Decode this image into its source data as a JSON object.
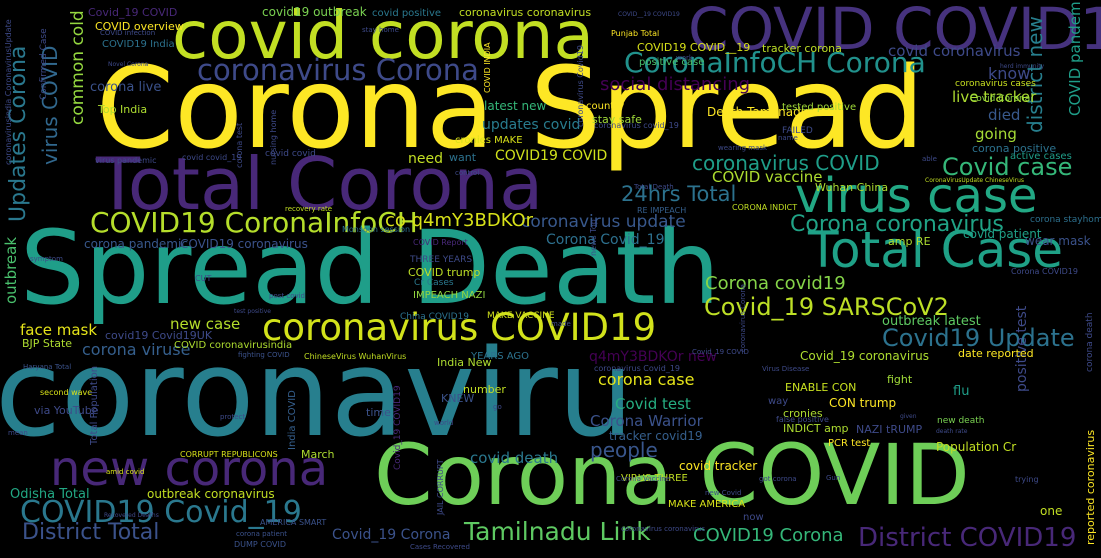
{
  "colors": {
    "background": "#000000",
    "palette": [
      "#440154",
      "#46327e",
      "#365c8d",
      "#277f8e",
      "#1fa187",
      "#4ac16d",
      "#a0da39",
      "#fde725"
    ]
  },
  "words": [
    {
      "text": "coronaviru",
      "color": "#277f8e",
      "rotated": false
    },
    {
      "text": "Corona Spread",
      "color": "#fde725",
      "rotated": false
    },
    {
      "text": "Spread Death",
      "color": "#1f9e89",
      "rotated": false
    },
    {
      "text": "Total Corona",
      "color": "#482878",
      "rotated": false
    },
    {
      "text": "covid corona",
      "color": "#c2df23",
      "rotated": false
    },
    {
      "text": "COVID COVID19",
      "color": "#46327e",
      "rotated": false
    },
    {
      "text": "Corona COVID",
      "color": "#6ece58",
      "rotated": false
    },
    {
      "text": "new corona",
      "color": "#482878",
      "rotated": false
    },
    {
      "text": "virus case",
      "color": "#22a884",
      "rotated": false
    },
    {
      "text": "Total Case",
      "color": "#1fa187",
      "rotated": false
    },
    {
      "text": "coronavirus COVID19",
      "color": "#d2e21b",
      "rotated": false
    },
    {
      "text": "coronavirus Corona",
      "color": "#3e4a89",
      "rotated": false
    },
    {
      "text": "CoronaInfoCH Corona",
      "color": "#21918c",
      "rotated": false
    },
    {
      "text": "COVID19 CoronaInfoCH",
      "color": "#b5de2b",
      "rotated": false
    },
    {
      "text": "COVID19 Covid_19",
      "color": "#2a788e",
      "rotated": false
    },
    {
      "text": "District Total",
      "color": "#3b528b",
      "rotated": false
    },
    {
      "text": "Tamilnadu Link",
      "color": "#5ec962",
      "rotated": false
    },
    {
      "text": "District COVID19",
      "color": "#482878",
      "rotated": false
    },
    {
      "text": "COVID19 Corona",
      "color": "#35b779",
      "rotated": false
    },
    {
      "text": "Corona coronavirus",
      "color": "#20a386",
      "rotated": false
    },
    {
      "text": "Covid_19 SARSCoV2",
      "color": "#bddf26",
      "rotated": false
    },
    {
      "text": "Covid19 Update",
      "color": "#2c728e",
      "rotated": false
    },
    {
      "text": "Covid case",
      "color": "#35b779",
      "rotated": false
    },
    {
      "text": "coronavirus COVID",
      "color": "#1f9e89",
      "rotated": false
    },
    {
      "text": "Corona covid19",
      "color": "#86d549",
      "rotated": false
    },
    {
      "text": "virus COVID",
      "color": "#31688e",
      "rotated": true
    },
    {
      "text": "Updates Corona",
      "color": "#2a788e",
      "rotated": true
    },
    {
      "text": "24hrs Total",
      "color": "#2c728e",
      "rotated": false
    },
    {
      "text": "coronavirus update",
      "color": "#38588c",
      "rotated": false
    },
    {
      "text": "co q4mY3BDKOr",
      "color": "#d8e219",
      "rotated": false
    },
    {
      "text": "corona case",
      "color": "#e5e419",
      "rotated": false
    },
    {
      "text": "Covid test",
      "color": "#26ad81",
      "rotated": false
    },
    {
      "text": "corona viruse",
      "color": "#355f8d",
      "rotated": false
    },
    {
      "text": "people",
      "color": "#39568c",
      "rotated": false
    },
    {
      "text": "covid death",
      "color": "#2a788e",
      "rotated": false
    },
    {
      "text": "Corona Warrior",
      "color": "#3b528b",
      "rotated": false
    },
    {
      "text": "COVID vaccine",
      "color": "#addc30",
      "rotated": false
    },
    {
      "text": "updates covid",
      "color": "#287c8e",
      "rotated": false
    },
    {
      "text": "COVID19 COVID",
      "color": "#d0e11c",
      "rotated": false
    },
    {
      "text": "Corona Covid_19",
      "color": "#2d708e",
      "rotated": false
    },
    {
      "text": "Covid_19 Corona",
      "color": "#3b528b",
      "rotated": false
    },
    {
      "text": "new case",
      "color": "#b5de2b",
      "rotated": false
    },
    {
      "text": "face mask",
      "color": "#e5e419",
      "rotated": false
    },
    {
      "text": "common cold",
      "color": "#95d840",
      "rotated": true
    },
    {
      "text": "district new",
      "color": "#277f8e",
      "rotated": true
    },
    {
      "text": "COVID pandemic",
      "color": "#1f9e89",
      "rotated": true
    },
    {
      "text": "outbreak",
      "color": "#4ac16d",
      "rotated": true
    },
    {
      "text": "q4mY3BDKOr new",
      "color": "#440154",
      "rotated": false
    },
    {
      "text": "positive test",
      "color": "#3e4a89",
      "rotated": true
    },
    {
      "text": "Corona outbreak",
      "color": "#d2e21b",
      "rotated": false
    },
    {
      "text": "Tamilnadu Link",
      "color": "#5ec962",
      "rotated": false
    },
    {
      "text": "live tracker",
      "color": "#addc30",
      "rotated": false
    },
    {
      "text": "know",
      "color": "#3e4a89",
      "rotated": false
    },
    {
      "text": "going",
      "color": "#a5db36",
      "rotated": false
    },
    {
      "text": "died",
      "color": "#38598c",
      "rotated": false
    },
    {
      "text": "need",
      "color": "#c2df23",
      "rotated": false
    },
    {
      "text": "covid patient",
      "color": "#1fa187",
      "rotated": false
    },
    {
      "text": "Death Tamilnadu",
      "color": "#fde725",
      "rotated": false
    },
    {
      "text": "social distancing",
      "color": "#440154",
      "rotated": false
    },
    {
      "text": "latest new",
      "color": "#35b779",
      "rotated": false
    },
    {
      "text": "Top India",
      "color": "#addc30",
      "rotated": false
    },
    {
      "text": "corona live",
      "color": "#3b528b",
      "rotated": false
    },
    {
      "text": "COVID19 India",
      "color": "#2c728e",
      "rotated": false
    },
    {
      "text": "COVID overview",
      "color": "#fde725",
      "rotated": false
    },
    {
      "text": "Covid_19 COVID",
      "color": "#482878",
      "rotated": false
    },
    {
      "text": "covid19 outbreak",
      "color": "#7ad151",
      "rotated": false
    },
    {
      "text": "covid positive",
      "color": "#2a788e",
      "rotated": false
    },
    {
      "text": "coronavirus coronavirus",
      "color": "#c2df23",
      "rotated": false
    },
    {
      "text": "COVID19 COVID__19",
      "color": "#d8e219",
      "rotated": false
    },
    {
      "text": "tracker corona",
      "color": "#bddf26",
      "rotated": false
    },
    {
      "text": "covid coronavirus",
      "color": "#3e4a89",
      "rotated": false
    },
    {
      "text": "positive case",
      "color": "#4ac16d",
      "rotated": false
    },
    {
      "text": "tested positive",
      "color": "#a0da39",
      "rotated": false
    },
    {
      "text": "coronavirus cases",
      "color": "#c8e020",
      "rotated": false
    },
    {
      "text": "Covid Corona",
      "color": "#90d743",
      "rotated": false
    },
    {
      "text": "corona positive",
      "color": "#2c728e",
      "rotated": false
    },
    {
      "text": "active cases",
      "color": "#1f9e89",
      "rotated": false
    },
    {
      "text": "wear mask",
      "color": "#3b528b",
      "rotated": false
    },
    {
      "text": "corona stayhome",
      "color": "#2d708e",
      "rotated": false
    },
    {
      "text": "amp RE",
      "color": "#addc30",
      "rotated": false
    },
    {
      "text": "date reported",
      "color": "#fde725",
      "rotated": false
    },
    {
      "text": "outbreak latest",
      "color": "#5ec962",
      "rotated": false
    },
    {
      "text": "Covid_19 coronavirus",
      "color": "#addc30",
      "rotated": false
    },
    {
      "text": "ENABLE CON",
      "color": "#c8e020",
      "rotated": false
    },
    {
      "text": "fight",
      "color": "#a0da39",
      "rotated": false
    },
    {
      "text": "flu",
      "color": "#1f9e89",
      "rotated": false
    },
    {
      "text": "CON trump",
      "color": "#fde725",
      "rotated": false
    },
    {
      "text": "NAZI tRUMP",
      "color": "#3e4a89",
      "rotated": false
    },
    {
      "text": "INDICT amp",
      "color": "#addc30",
      "rotated": false
    },
    {
      "text": "cronies",
      "color": "#addc30",
      "rotated": false
    },
    {
      "text": "Population Cr",
      "color": "#c2df23",
      "rotated": false
    },
    {
      "text": "new death",
      "color": "#7ad151",
      "rotated": false
    },
    {
      "text": "COVID19 coronavirus",
      "color": "#3b528b",
      "rotated": false
    },
    {
      "text": "corona pandemic",
      "color": "#38588c",
      "rotated": false
    },
    {
      "text": "COVID trump",
      "color": "#bddf26",
      "rotated": false
    },
    {
      "text": "THREE YEARS",
      "color": "#3e4a89",
      "rotated": false
    },
    {
      "text": "Cr Cases",
      "color": "#2a788e",
      "rotated": false
    },
    {
      "text": "IMPEACH NAZI",
      "color": "#95d840",
      "rotated": false
    },
    {
      "text": "China COVID19",
      "color": "#2c728e",
      "rotated": false
    },
    {
      "text": "MAKE VACCINE",
      "color": "#d0e11c",
      "rotated": false
    },
    {
      "text": "COVID coronavirusindia",
      "color": "#addc30",
      "rotated": false
    },
    {
      "text": "covid19 Covid19UK",
      "color": "#3e4a89",
      "rotated": false
    },
    {
      "text": "BJP State",
      "color": "#addc30",
      "rotated": false
    },
    {
      "text": "YEARS AGO",
      "color": "#2c728e",
      "rotated": false
    },
    {
      "text": "KNEW",
      "color": "#3b528b",
      "rotated": false
    },
    {
      "text": "number",
      "color": "#c2df23",
      "rotated": false
    },
    {
      "text": "India New",
      "color": "#addc30",
      "rotated": false
    },
    {
      "text": "covid tracker",
      "color": "#fde725",
      "rotated": false
    },
    {
      "text": "PCR test",
      "color": "#fde725",
      "rotated": false
    },
    {
      "text": "tracker covid19",
      "color": "#355f8d",
      "rotated": false
    },
    {
      "text": "CORRUPT REPUBLICONS",
      "color": "#d8e219",
      "rotated": false
    },
    {
      "text": "March",
      "color": "#addc30",
      "rotated": false
    },
    {
      "text": "Odisha Total",
      "color": "#22a884",
      "rotated": false
    },
    {
      "text": "outbreak coronavirus",
      "color": "#c2df23",
      "rotated": false
    },
    {
      "text": "via YouTube",
      "color": "#3e4a89",
      "rotated": false
    },
    {
      "text": "VIRUS THREE",
      "color": "#c2df23",
      "rotated": false
    },
    {
      "text": "MAKE AMERICA",
      "color": "#d8e219",
      "rotated": false
    },
    {
      "text": "one",
      "color": "#c2df23",
      "rotated": false
    },
    {
      "text": "time",
      "color": "#3b528b",
      "rotated": false
    },
    {
      "text": "stay safe",
      "color": "#a0da39",
      "rotated": false
    },
    {
      "text": "country",
      "color": "#fde725",
      "rotated": false
    },
    {
      "text": "want",
      "color": "#2c728e",
      "rotated": false
    },
    {
      "text": "cronies MAKE",
      "color": "#d8e219",
      "rotated": false
    },
    {
      "text": "Wuhan China",
      "color": "#addc30",
      "rotated": false
    },
    {
      "text": "Monsoon session",
      "color": "#2c728e",
      "rotated": false
    },
    {
      "text": "COVID Report",
      "color": "#482878",
      "rotated": false
    },
    {
      "text": "CORONA INDICT",
      "color": "#c2df23",
      "rotated": false
    },
    {
      "text": "RE IMPEACH",
      "color": "#355f8d",
      "rotated": false
    },
    {
      "text": "second wave",
      "color": "#d8e219",
      "rotated": false
    },
    {
      "text": "amid covid",
      "color": "#d8e219",
      "rotated": false
    },
    {
      "text": "Total Population",
      "color": "#3e4a89",
      "rotated": true
    },
    {
      "text": "India COVID",
      "color": "#355f8d",
      "rotated": true
    },
    {
      "text": "Covid_19 COVID19",
      "color": "#482878",
      "rotated": true
    },
    {
      "text": "DUMP COVID",
      "color": "#3b528b",
      "rotated": false
    },
    {
      "text": "AMERICA SMART",
      "color": "#3b528b",
      "rotated": false
    },
    {
      "text": "corona patient",
      "color": "#3b528b",
      "rotated": false
    },
    {
      "text": "Cases Recovered",
      "color": "#3e4a89",
      "rotated": false
    },
    {
      "text": "Recovered Deaths",
      "color": "#3e4a89",
      "rotated": false
    },
    {
      "text": "Haryana Total",
      "color": "#3b528b",
      "rotated": false
    },
    {
      "text": "fighting COVID",
      "color": "#3b528b",
      "rotated": false
    },
    {
      "text": "ChineseVirus WuhanVirus",
      "color": "#c2df23",
      "rotated": false
    },
    {
      "text": "post covid",
      "color": "#3e4a89",
      "rotated": false
    },
    {
      "text": "test positive",
      "color": "#3e4a89",
      "rotated": false
    },
    {
      "text": "recovery rate",
      "color": "#c2df23",
      "rotated": false
    },
    {
      "text": "JAIL CORRUPT",
      "color": "#3e4a89",
      "rotated": true
    },
    {
      "text": "Corona Vaccine",
      "color": "#3e4a89",
      "rotated": false
    },
    {
      "text": "got corona",
      "color": "#3e4a89",
      "rotated": false
    },
    {
      "text": "new Covid",
      "color": "#3e4a89",
      "rotated": false
    },
    {
      "text": "now",
      "color": "#3e4a89",
      "rotated": false
    },
    {
      "text": "way",
      "color": "#3e4a89",
      "rotated": false
    },
    {
      "text": "reported coronavirus",
      "color": "#fde725",
      "rotated": true
    },
    {
      "text": "corona death",
      "color": "#3e4a89",
      "rotated": true
    },
    {
      "text": "trying",
      "color": "#3e4a89",
      "rotated": false
    },
    {
      "text": "given",
      "color": "#3e4a89",
      "rotated": false
    },
    {
      "text": "false positive",
      "color": "#3e4a89",
      "rotated": false
    },
    {
      "text": "death rate",
      "color": "#3e4a89",
      "rotated": false
    },
    {
      "text": "Virus Disease",
      "color": "#3e4a89",
      "rotated": false
    },
    {
      "text": "FAILED",
      "color": "#3e4a89",
      "rotated": false
    },
    {
      "text": "wearing mask",
      "color": "#3e4a89",
      "rotated": false
    },
    {
      "text": "virus pandemic",
      "color": "#3e4a89",
      "rotated": false
    },
    {
      "text": "Novel Corona",
      "color": "#3e4a89",
      "rotated": false
    },
    {
      "text": "COVID infection",
      "color": "#3e4a89",
      "rotated": false
    },
    {
      "text": "Confirmed Case",
      "color": "#3e4a89",
      "rotated": true
    },
    {
      "text": "coronavirusindia CoronavirusUpdate",
      "color": "#3e4a89",
      "rotated": true
    },
    {
      "text": "Punjab Total",
      "color": "#fde725",
      "rotated": false
    },
    {
      "text": "herd immunity",
      "color": "#3e4a89",
      "rotated": false
    },
    {
      "text": "Corona COVID19",
      "color": "#3e4a89",
      "rotated": false
    },
    {
      "text": "CoronaVirusUpdate ChineseVirus",
      "color": "#c2df23",
      "rotated": false
    },
    {
      "text": "Total Death",
      "color": "#3e4a89",
      "rotated": false
    },
    {
      "text": "symptom",
      "color": "#3e4a89",
      "rotated": false
    },
    {
      "text": "CUT",
      "color": "#3e4a89",
      "rotated": false
    },
    {
      "text": "protect",
      "color": "#3e4a89",
      "rotated": false
    },
    {
      "text": "world",
      "color": "#3e4a89",
      "rotated": false
    },
    {
      "text": "go",
      "color": "#3e4a89",
      "rotated": false
    },
    {
      "text": "made",
      "color": "#3e4a89",
      "rotated": false
    },
    {
      "text": "Covid_19 COVID",
      "color": "#3e4a89",
      "rotated": false
    },
    {
      "text": "covid covid_19",
      "color": "#3e4a89",
      "rotated": false
    },
    {
      "text": "corona test",
      "color": "#3e4a89",
      "rotated": true
    },
    {
      "text": "covid covid",
      "color": "#3e4a89",
      "rotated": false
    },
    {
      "text": "nursing home",
      "color": "#3e4a89",
      "rotated": true
    },
    {
      "text": "coronavirus covid_19",
      "color": "#3e4a89",
      "rotated": false
    },
    {
      "text": "COVID__19 COVID19",
      "color": "#3e4a89",
      "rotated": false
    },
    {
      "text": "coronavirus coronavirus",
      "color": "#3e4a89",
      "rotated": false
    },
    {
      "text": "news Top",
      "color": "#3e4a89",
      "rotated": true
    },
    {
      "text": "COVID INDIA",
      "color": "#fde725",
      "rotated": true
    },
    {
      "text": "work",
      "color": "#3e4a89",
      "rotated": false
    },
    {
      "text": "stay home",
      "color": "#3e4a89",
      "rotated": false
    },
    {
      "text": "control",
      "color": "#3e4a89",
      "rotated": false
    },
    {
      "text": "able",
      "color": "#3e4a89",
      "rotated": false
    },
    {
      "text": "name",
      "color": "#3e4a89",
      "rotated": false
    },
    {
      "text": "coronavirus Covid19",
      "color": "#3e4a89",
      "rotated": true
    },
    {
      "text": "mean",
      "color": "#3e4a89",
      "rotated": false
    },
    {
      "text": "Gun",
      "color": "#3e4a89",
      "rotated": false
    },
    {
      "text": "coronavirus Corona",
      "color": "#3e4a89",
      "rotated": true
    },
    {
      "text": "coronavirus Covid_19",
      "color": "#3e4a89",
      "rotated": false
    }
  ]
}
